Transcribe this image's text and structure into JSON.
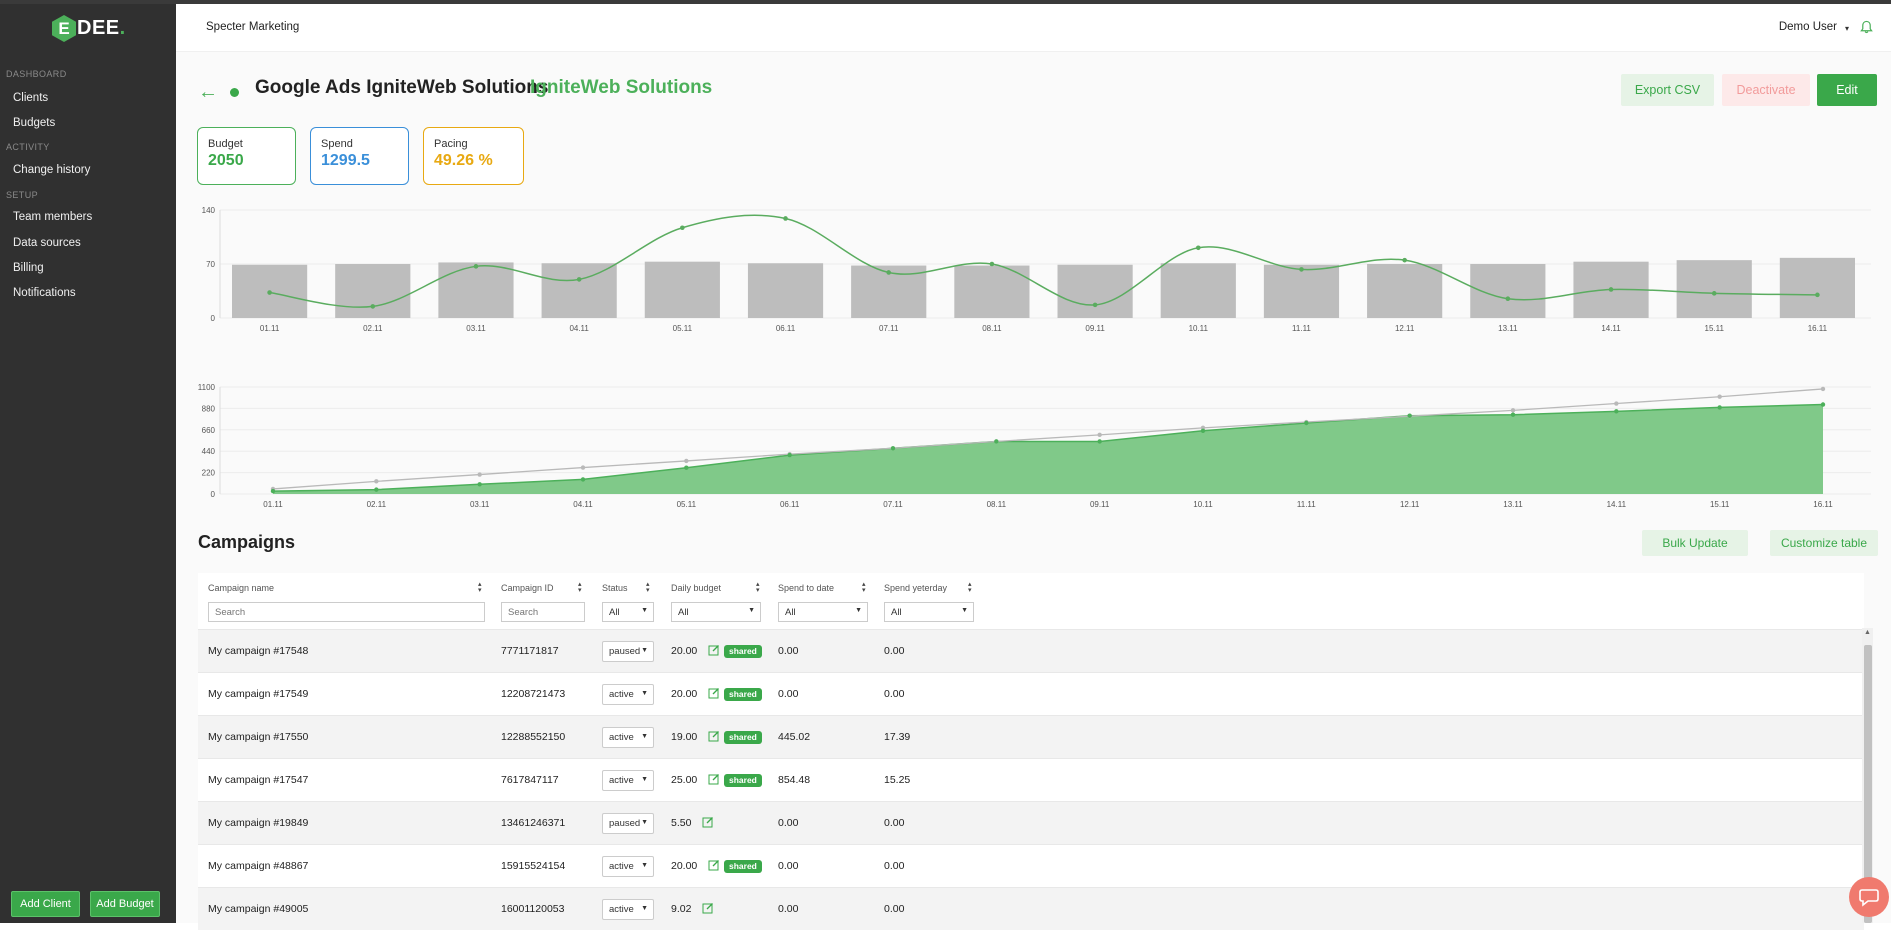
{
  "sidebar": {
    "logo_letter": "E",
    "logo_text": "DEE",
    "logo_dot": ".",
    "sections": [
      {
        "label": "DASHBOARD",
        "items": [
          "Clients",
          "Budgets"
        ]
      },
      {
        "label": "ACTIVITY",
        "items": [
          "Change history"
        ]
      },
      {
        "label": "SETUP",
        "items": [
          "Team members",
          "Data sources",
          "Billing",
          "Notifications"
        ]
      }
    ],
    "add_client_label": "Add Client",
    "add_budget_label": "Add Budget"
  },
  "header": {
    "org": "Specter Marketing",
    "user": "Demo User",
    "caret": "▾"
  },
  "page": {
    "back_icon": "←",
    "title": "Google Ads IgniteWeb Solutions",
    "subtitle": "IgniteWeb Solutions",
    "export_label": "Export CSV",
    "deactivate_label": "Deactivate",
    "edit_label": "Edit"
  },
  "stats": {
    "budget": {
      "label": "Budget",
      "value": "2050",
      "color": "#3aa84a"
    },
    "spend": {
      "label": "Spend",
      "value": "1299.5",
      "color": "#3a8fd9"
    },
    "pacing": {
      "label": "Pacing",
      "value": "49.26 %",
      "color": "#e8a912"
    }
  },
  "chart_data": [
    {
      "type": "bar",
      "categories": [
        "01.11",
        "02.11",
        "03.11",
        "04.11",
        "05.11",
        "06.11",
        "07.11",
        "08.11",
        "09.11",
        "10.11",
        "11.11",
        "12.11",
        "13.11",
        "14.11",
        "15.11",
        "16.11"
      ],
      "series": [
        {
          "type": "bar",
          "values": [
            69,
            70,
            72,
            71,
            73,
            71,
            68,
            68,
            69,
            71,
            69,
            70,
            70,
            73,
            75,
            78
          ],
          "color": "#bdbdbd"
        },
        {
          "type": "line",
          "values": [
            33,
            15,
            67,
            50,
            117,
            129,
            59,
            70,
            17,
            91,
            63,
            75,
            25,
            37,
            32,
            30
          ],
          "color": "#5aac5f"
        }
      ],
      "yticks": [
        0,
        70,
        140
      ],
      "ylim": [
        0,
        140
      ],
      "grid": true
    },
    {
      "type": "area",
      "categories": [
        "01.11",
        "02.11",
        "03.11",
        "04.11",
        "05.11",
        "06.11",
        "07.11",
        "08.11",
        "09.11",
        "10.11",
        "11.11",
        "12.11",
        "13.11",
        "14.11",
        "15.11",
        "16.11"
      ],
      "series": [
        {
          "type": "line",
          "values": [
            52,
            130,
            200,
            272,
            340,
            410,
            470,
            540,
            608,
            680,
            740,
            800,
            860,
            930,
            1000,
            1080
          ],
          "color": "#b9b9b9"
        },
        {
          "type": "area",
          "values": [
            30,
            45,
            100,
            150,
            270,
            400,
            470,
            540,
            540,
            650,
            730,
            805,
            815,
            850,
            890,
            920
          ],
          "color": "#4cb05a"
        }
      ],
      "yticks": [
        0,
        220,
        440,
        660,
        880,
        1100
      ],
      "ylim": [
        0,
        1100
      ],
      "grid": true
    }
  ],
  "campaigns": {
    "title": "Campaigns",
    "bulk_update_label": "Bulk Update",
    "customize_label": "Customize table",
    "columns": {
      "name": "Campaign name",
      "id": "Campaign ID",
      "status": "Status",
      "daily_budget": "Daily budget",
      "spend_to_date": "Spend to date",
      "spend_yesterday": "Spend yeterday"
    },
    "filters": {
      "name_placeholder": "Search",
      "id_placeholder": "Search",
      "status": "All",
      "daily_budget": "All",
      "spend_to_date": "All",
      "spend_yesterday": "All"
    },
    "rows": [
      {
        "name": "My campaign #17548",
        "id": "7771171817",
        "status": "paused",
        "budget": "20.00",
        "shared": "shared",
        "spend": "0.00",
        "yesterday": "0.00"
      },
      {
        "name": "My campaign #17549",
        "id": "12208721473",
        "status": "active",
        "budget": "20.00",
        "shared": "shared",
        "spend": "0.00",
        "yesterday": "0.00"
      },
      {
        "name": "My campaign #17550",
        "id": "12288552150",
        "status": "active",
        "budget": "19.00",
        "shared": "shared",
        "spend": "445.02",
        "yesterday": "17.39"
      },
      {
        "name": "My campaign #17547",
        "id": "7617847117",
        "status": "active",
        "budget": "25.00",
        "shared": "shared",
        "spend": "854.48",
        "yesterday": "15.25"
      },
      {
        "name": "My campaign #19849",
        "id": "13461246371",
        "status": "paused",
        "budget": "5.50",
        "shared": "",
        "spend": "0.00",
        "yesterday": "0.00"
      },
      {
        "name": "My campaign #48867",
        "id": "15915524154",
        "status": "active",
        "budget": "20.00",
        "shared": "shared",
        "spend": "0.00",
        "yesterday": "0.00"
      },
      {
        "name": "My campaign #49005",
        "id": "16001120053",
        "status": "active",
        "budget": "9.02",
        "shared": "",
        "spend": "0.00",
        "yesterday": "0.00"
      }
    ]
  }
}
